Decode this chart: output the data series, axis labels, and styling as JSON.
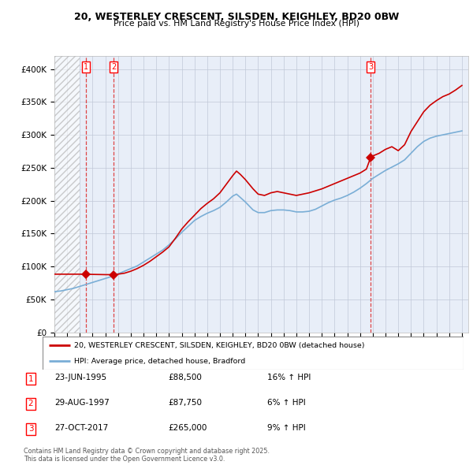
{
  "title": "20, WESTERLEY CRESCENT, SILSDEN, KEIGHLEY, BD20 0BW",
  "subtitle": "Price paid vs. HM Land Registry's House Price Index (HPI)",
  "legend_label_red": "20, WESTERLEY CRESCENT, SILSDEN, KEIGHLEY, BD20 0BW (detached house)",
  "legend_label_blue": "HPI: Average price, detached house, Bradford",
  "footnote": "Contains HM Land Registry data © Crown copyright and database right 2025.\nThis data is licensed under the Open Government Licence v3.0.",
  "transactions": [
    {
      "num": 1,
      "date": "23-JUN-1995",
      "price": 88500,
      "hpi_change": "16% ↑ HPI",
      "date_x": 1995.48
    },
    {
      "num": 2,
      "date": "29-AUG-1997",
      "price": 87750,
      "hpi_change": "6% ↑ HPI",
      "date_x": 1997.66
    },
    {
      "num": 3,
      "date": "27-OCT-2017",
      "price": 265000,
      "hpi_change": "9% ↑ HPI",
      "date_x": 2017.82
    }
  ],
  "red_line_x": [
    1993.0,
    1993.5,
    1994.0,
    1994.5,
    1995.0,
    1995.48,
    1995.9,
    1996.5,
    1997.0,
    1997.66,
    1998.0,
    1998.5,
    1999.0,
    1999.5,
    2000.0,
    2000.5,
    2001.0,
    2001.5,
    2002.0,
    2002.5,
    2003.0,
    2003.5,
    2004.0,
    2004.5,
    2005.0,
    2005.5,
    2006.0,
    2006.5,
    2007.0,
    2007.3,
    2007.6,
    2008.0,
    2008.3,
    2008.6,
    2009.0,
    2009.5,
    2010.0,
    2010.5,
    2011.0,
    2011.5,
    2012.0,
    2012.5,
    2013.0,
    2013.5,
    2014.0,
    2014.5,
    2015.0,
    2015.5,
    2016.0,
    2016.5,
    2017.0,
    2017.5,
    2017.82,
    2018.0,
    2018.5,
    2019.0,
    2019.5,
    2020.0,
    2020.5,
    2021.0,
    2021.5,
    2022.0,
    2022.5,
    2023.0,
    2023.5,
    2024.0,
    2024.5,
    2025.0
  ],
  "red_line_y": [
    88500,
    88500,
    88500,
    88500,
    88500,
    88500,
    88200,
    88000,
    87800,
    87750,
    88500,
    90000,
    93000,
    97000,
    102000,
    108000,
    115000,
    122000,
    130000,
    143000,
    157000,
    168000,
    178000,
    188000,
    196000,
    203000,
    212000,
    225000,
    238000,
    245000,
    240000,
    232000,
    225000,
    218000,
    210000,
    208000,
    212000,
    214000,
    212000,
    210000,
    208000,
    210000,
    212000,
    215000,
    218000,
    222000,
    226000,
    230000,
    234000,
    238000,
    242000,
    248000,
    265000,
    268000,
    272000,
    278000,
    282000,
    276000,
    285000,
    305000,
    320000,
    335000,
    345000,
    352000,
    358000,
    362000,
    368000,
    375000
  ],
  "blue_line_x": [
    1993.0,
    1993.5,
    1994.0,
    1994.5,
    1995.0,
    1995.5,
    1996.0,
    1996.5,
    1997.0,
    1997.5,
    1998.0,
    1998.5,
    1999.0,
    1999.5,
    2000.0,
    2000.5,
    2001.0,
    2001.5,
    2002.0,
    2002.5,
    2003.0,
    2003.5,
    2004.0,
    2004.5,
    2005.0,
    2005.5,
    2006.0,
    2006.5,
    2007.0,
    2007.3,
    2007.6,
    2008.0,
    2008.3,
    2008.6,
    2009.0,
    2009.5,
    2010.0,
    2010.5,
    2011.0,
    2011.5,
    2012.0,
    2012.5,
    2013.0,
    2013.5,
    2014.0,
    2014.5,
    2015.0,
    2015.5,
    2016.0,
    2016.5,
    2017.0,
    2017.5,
    2018.0,
    2018.5,
    2019.0,
    2019.5,
    2020.0,
    2020.5,
    2021.0,
    2021.5,
    2022.0,
    2022.5,
    2023.0,
    2023.5,
    2024.0,
    2024.5,
    2025.0
  ],
  "blue_line_y": [
    62000,
    63000,
    65000,
    67000,
    70000,
    73000,
    76000,
    79000,
    82000,
    85000,
    89000,
    93000,
    97000,
    101000,
    107000,
    113000,
    119000,
    125000,
    133000,
    142000,
    152000,
    161000,
    170000,
    176000,
    181000,
    185000,
    190000,
    198000,
    207000,
    210000,
    205000,
    198000,
    192000,
    186000,
    182000,
    182000,
    185000,
    186000,
    186000,
    185000,
    183000,
    183000,
    184000,
    187000,
    192000,
    197000,
    201000,
    204000,
    208000,
    213000,
    219000,
    226000,
    234000,
    240000,
    246000,
    251000,
    256000,
    262000,
    272000,
    282000,
    290000,
    295000,
    298000,
    300000,
    302000,
    304000,
    306000
  ],
  "hatch_end_x": 1995.0,
  "ylim": [
    0,
    420000
  ],
  "yticks": [
    0,
    50000,
    100000,
    150000,
    200000,
    250000,
    300000,
    350000,
    400000
  ],
  "ytick_labels": [
    "£0",
    "£50K",
    "£100K",
    "£150K",
    "£200K",
    "£250K",
    "£300K",
    "£350K",
    "£400K"
  ],
  "xlim": [
    1993.0,
    2025.5
  ],
  "xticks": [
    1993,
    1994,
    1995,
    1996,
    1997,
    1998,
    1999,
    2000,
    2001,
    2002,
    2003,
    2004,
    2005,
    2006,
    2007,
    2008,
    2009,
    2010,
    2011,
    2012,
    2013,
    2014,
    2015,
    2016,
    2017,
    2018,
    2019,
    2020,
    2021,
    2022,
    2023,
    2024,
    2025
  ],
  "background_color": "#ffffff",
  "plot_bg_color": "#e8eef8",
  "grid_color": "#c0c8d8",
  "red_color": "#cc0000",
  "blue_color": "#7aaed6",
  "dashed_line_color": "#dd3333"
}
